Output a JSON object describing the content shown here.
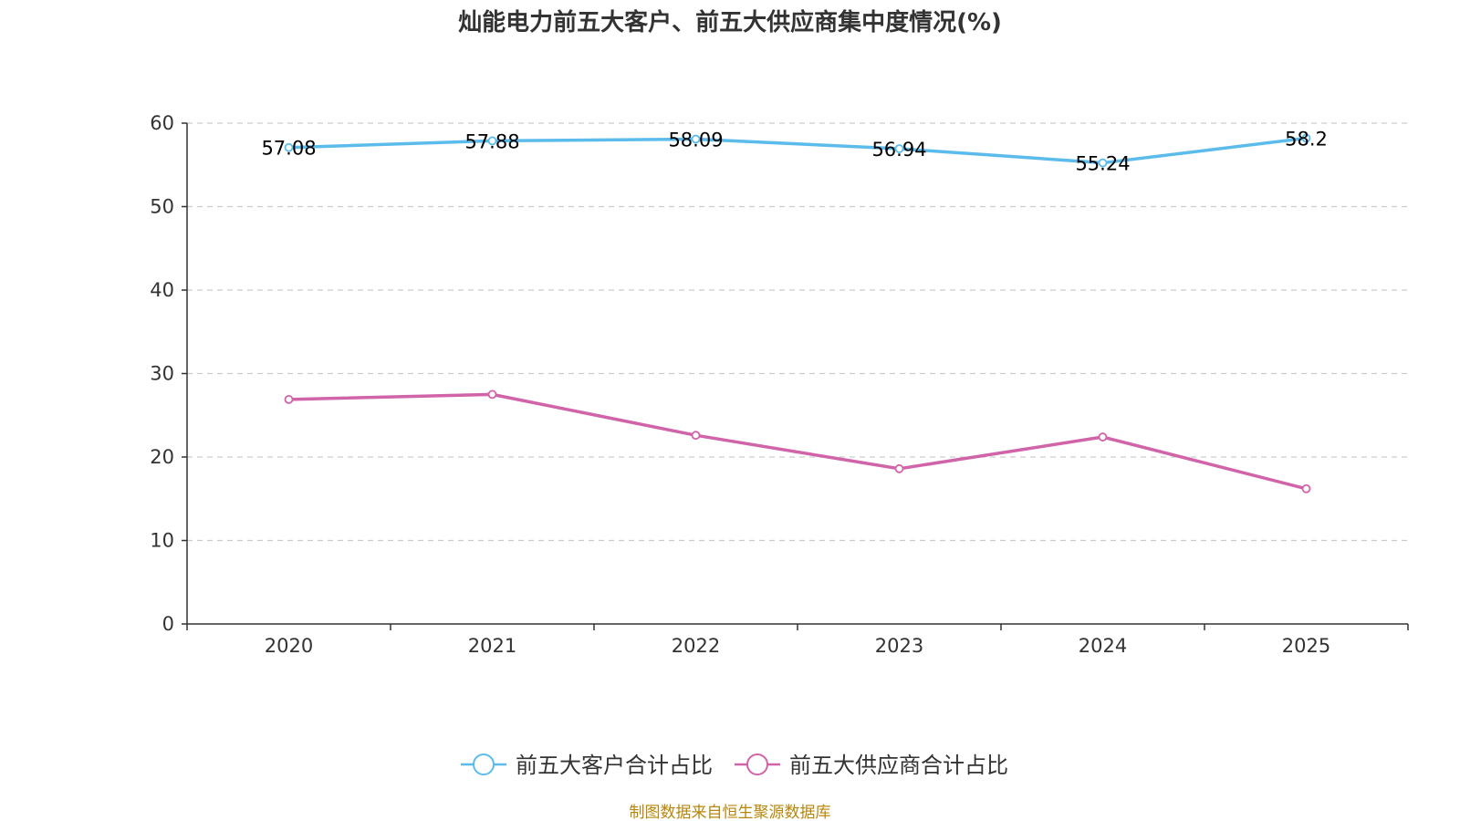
{
  "chart_data": {
    "type": "line",
    "title": "灿能电力前五大客户、前五大供应商集中度情况(%)",
    "categories": [
      "2020",
      "2021",
      "2022",
      "2023",
      "2024",
      "2025"
    ],
    "ylim": [
      0,
      60
    ],
    "yticks": [
      0,
      10,
      20,
      30,
      40,
      50,
      60
    ],
    "grid": true,
    "legend_position": "bottom",
    "series": [
      {
        "name": "前五大客户合计占比",
        "color": "#5bbcec",
        "values": [
          57.08,
          57.88,
          58.09,
          56.94,
          55.24,
          58.2
        ],
        "labels": [
          "57.08",
          "57.88",
          "58.09",
          "56.94",
          "55.24",
          "58.2"
        ],
        "show_labels": true
      },
      {
        "name": "前五大供应商合计占比",
        "color": "#d163a8",
        "values": [
          26.9,
          27.5,
          22.6,
          18.6,
          22.4,
          16.2
        ],
        "show_labels": false
      }
    ],
    "source": "制图数据来自恒生聚源数据库"
  }
}
